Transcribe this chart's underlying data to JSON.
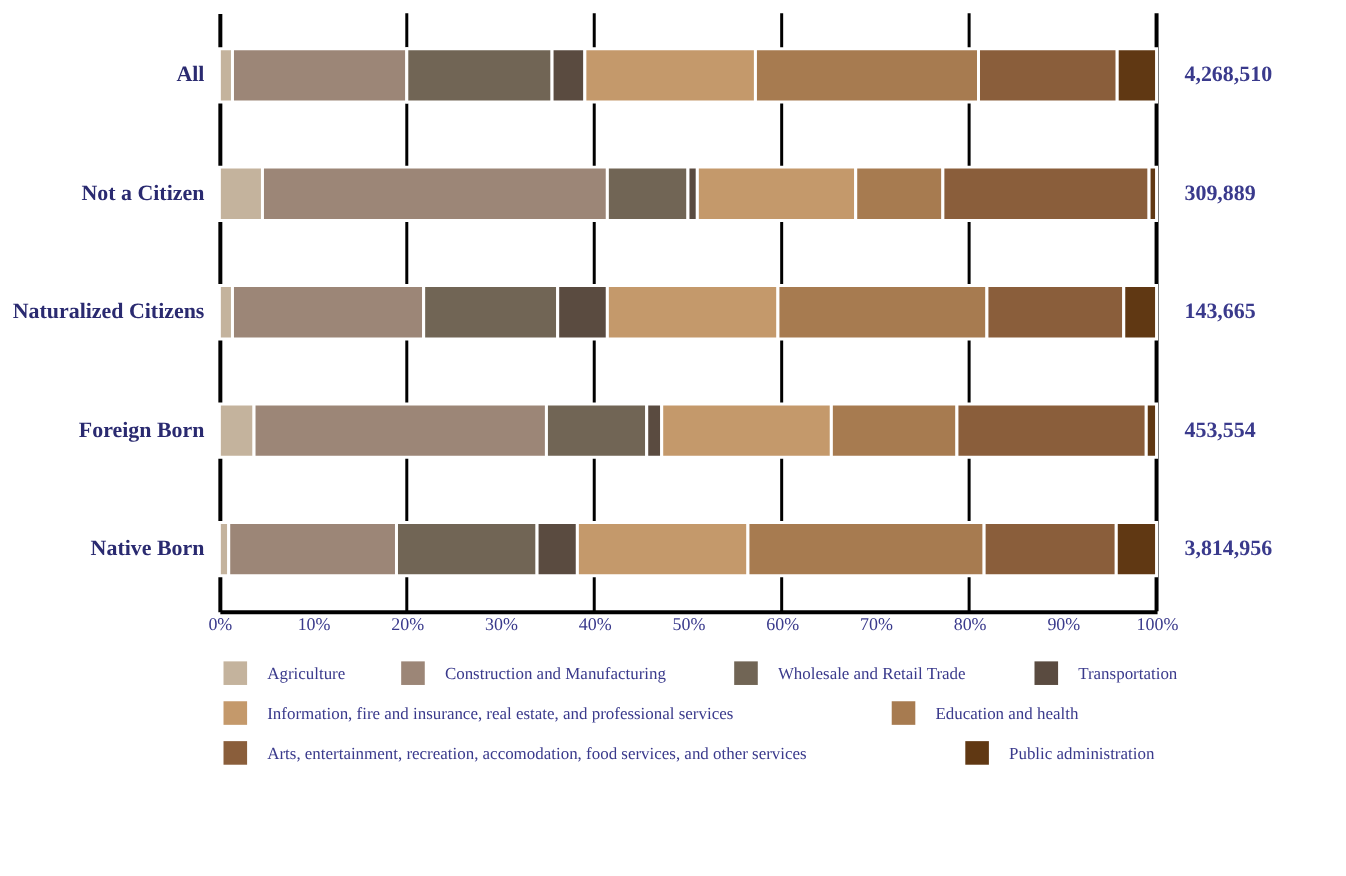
{
  "chart_data": {
    "type": "bar",
    "orientation": "horizontal",
    "stacked": true,
    "categories": [
      "All",
      "Not a Citizen",
      "Naturalized Citizens",
      "Foreign Born",
      "Native Born"
    ],
    "series": [
      {
        "name": "Agriculture",
        "color": "#c4b39d",
        "values": [
          1.4,
          4.6,
          1.4,
          3.7,
          1.0
        ]
      },
      {
        "name": "Construction and Manufacturing",
        "color": "#9c8677",
        "values": [
          18.6,
          36.8,
          20.4,
          31.2,
          17.9
        ]
      },
      {
        "name": "Wholesale and Retail Trade",
        "color": "#716555",
        "values": [
          15.5,
          8.6,
          14.3,
          10.7,
          15.0
        ]
      },
      {
        "name": "Transportation",
        "color": "#5a4b40",
        "values": [
          3.5,
          1.0,
          5.3,
          1.6,
          4.3
        ]
      },
      {
        "name": "Information, fire and insurance, real estate, and professional services",
        "color": "#c4996b",
        "values": [
          18.2,
          16.9,
          18.2,
          18.1,
          18.2
        ]
      },
      {
        "name": "Education and health",
        "color": "#a77b50",
        "values": [
          23.8,
          9.3,
          22.3,
          13.4,
          25.2
        ]
      },
      {
        "name": "Arts, entertainment, recreation, accomodation, food services, and other services",
        "color": "#8a5e3b",
        "values": [
          14.8,
          22.0,
          14.6,
          20.2,
          14.1
        ]
      },
      {
        "name": "Public administration",
        "color": "#603813",
        "values": [
          4.2,
          0.8,
          3.5,
          1.1,
          4.3
        ]
      }
    ],
    "xlim": [
      0,
      100
    ],
    "xticks": [
      {
        "value": 0,
        "label": "0%"
      },
      {
        "value": 10,
        "label": "10%"
      },
      {
        "value": 20,
        "label": "20%"
      },
      {
        "value": 30,
        "label": "30%"
      },
      {
        "value": 40,
        "label": "40%"
      },
      {
        "value": 50,
        "label": "50%"
      },
      {
        "value": 60,
        "label": "60%"
      },
      {
        "value": 70,
        "label": "70%"
      },
      {
        "value": 80,
        "label": "80%"
      },
      {
        "value": 90,
        "label": "90%"
      },
      {
        "value": 100,
        "label": "100%"
      }
    ],
    "ref_lines": [
      {
        "axis": "x",
        "value": 20,
        "color": "#000000"
      },
      {
        "axis": "x",
        "value": 40,
        "color": "#000000"
      },
      {
        "axis": "x",
        "value": 60,
        "color": "#000000"
      },
      {
        "axis": "x",
        "value": 80,
        "color": "#000000"
      }
    ],
    "annotations": [
      "4,268,510",
      "309,889",
      "143,665",
      "453,554",
      "3,814,956"
    ],
    "grid": false,
    "legend": "bottom"
  }
}
